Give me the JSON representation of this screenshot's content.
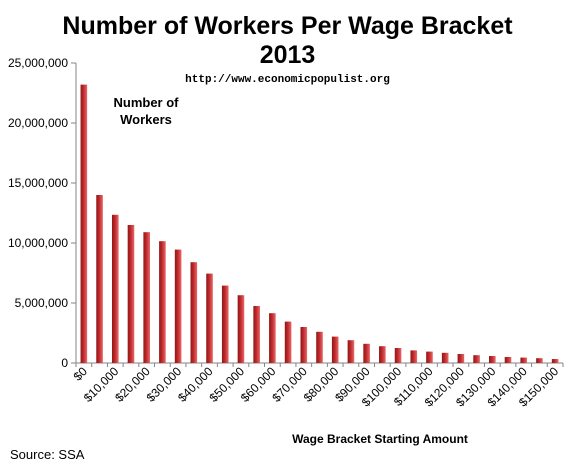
{
  "chart_data": {
    "type": "bar",
    "title": "Number of Workers Per Wage Bracket",
    "subtitle": "2013",
    "url_note": "http://www.economicpopulist.org",
    "annotation": "Number of Workers",
    "xlabel": "Wage Bracket Starting Amount",
    "ylabel": "",
    "source": "Source: SSA",
    "ylim": [
      0,
      25000000
    ],
    "yticks": [
      0,
      5000000,
      10000000,
      15000000,
      20000000,
      25000000
    ],
    "ytick_labels": [
      "0",
      "5,000,000",
      "10,000,000",
      "15,000,000",
      "20,000,000",
      "25,000,000"
    ],
    "grid": false,
    "legend": "none",
    "bar_color": "#c0292b",
    "categories": [
      "$0",
      "$5,000",
      "$10,000",
      "$15,000",
      "$20,000",
      "$25,000",
      "$30,000",
      "$35,000",
      "$40,000",
      "$45,000",
      "$50,000",
      "$55,000",
      "$60,000",
      "$65,000",
      "$70,000",
      "$75,000",
      "$80,000",
      "$85,000",
      "$90,000",
      "$95,000",
      "$100,000",
      "$105,000",
      "$110,000",
      "$115,000",
      "$120,000",
      "$125,000",
      "$130,000",
      "$135,000",
      "$140,000",
      "$145,000",
      "$150,000"
    ],
    "xtick_labels_shown": [
      "$0",
      "$10,000",
      "$20,000",
      "$30,000",
      "$40,000",
      "$50,000",
      "$60,000",
      "$70,000",
      "$80,000",
      "$90,000",
      "$100,000",
      "$110,000",
      "$120,000",
      "$130,000",
      "$140,000",
      "$150,000"
    ],
    "values": [
      23200000,
      14000000,
      12350000,
      11500000,
      10900000,
      10150000,
      9450000,
      8400000,
      7450000,
      6450000,
      5650000,
      4750000,
      4150000,
      3450000,
      3000000,
      2600000,
      2200000,
      1900000,
      1600000,
      1400000,
      1250000,
      1050000,
      950000,
      850000,
      750000,
      650000,
      580000,
      500000,
      450000,
      400000,
      330000
    ]
  }
}
